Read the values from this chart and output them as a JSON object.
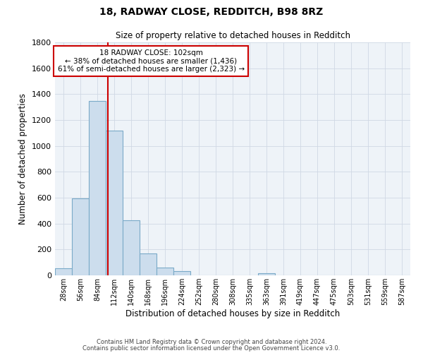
{
  "title": "18, RADWAY CLOSE, REDDITCH, B98 8RZ",
  "subtitle": "Size of property relative to detached houses in Redditch",
  "xlabel": "Distribution of detached houses by size in Redditch",
  "ylabel": "Number of detached properties",
  "bar_color": "#ccdded",
  "bar_edge_color": "#7aaac8",
  "bin_labels": [
    "28sqm",
    "56sqm",
    "84sqm",
    "112sqm",
    "140sqm",
    "168sqm",
    "196sqm",
    "224sqm",
    "252sqm",
    "280sqm",
    "308sqm",
    "335sqm",
    "363sqm",
    "391sqm",
    "419sqm",
    "447sqm",
    "475sqm",
    "503sqm",
    "531sqm",
    "559sqm",
    "587sqm"
  ],
  "bar_values": [
    55,
    595,
    1350,
    1120,
    425,
    170,
    60,
    32,
    0,
    0,
    0,
    0,
    15,
    0,
    0,
    0,
    0,
    0,
    0,
    0,
    0
  ],
  "ylim": [
    0,
    1800
  ],
  "yticks": [
    0,
    200,
    400,
    600,
    800,
    1000,
    1200,
    1400,
    1600,
    1800
  ],
  "vline_x": 2.643,
  "annotation_title": "18 RADWAY CLOSE: 102sqm",
  "annotation_line1": "← 38% of detached houses are smaller (1,436)",
  "annotation_line2": "61% of semi-detached houses are larger (2,323) →",
  "annotation_box_color": "#ffffff",
  "annotation_box_edge": "#cc0000",
  "vline_color": "#cc0000",
  "footer_line1": "Contains HM Land Registry data © Crown copyright and database right 2024.",
  "footer_line2": "Contains public sector information licensed under the Open Government Licence v3.0.",
  "background_color": "#ffffff",
  "grid_color": "#d0d8e4"
}
